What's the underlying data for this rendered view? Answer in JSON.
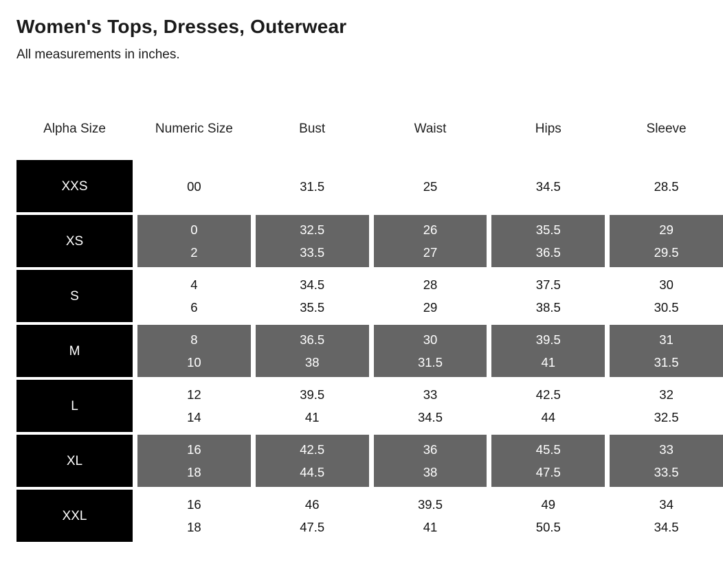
{
  "page": {
    "title": "Women's Tops, Dresses, Outerwear",
    "subtitle": "All measurements in inches."
  },
  "colors": {
    "alpha_cell_bg": "#000000",
    "alpha_cell_text": "#ffffff",
    "shaded_cell_bg": "#656565",
    "shaded_cell_text": "#ffffff",
    "plain_cell_text": "#111111",
    "page_bg": "#ffffff"
  },
  "table": {
    "columns": [
      "Alpha Size",
      "Numeric Size",
      "Bust",
      "Waist",
      "Hips",
      "Sleeve"
    ],
    "measurement_keys": [
      "numeric",
      "bust",
      "waist",
      "hips",
      "sleeve"
    ],
    "rows": [
      {
        "alpha": "XXS",
        "shaded": false,
        "numeric": [
          "00"
        ],
        "bust": [
          "31.5"
        ],
        "waist": [
          "25"
        ],
        "hips": [
          "34.5"
        ],
        "sleeve": [
          "28.5"
        ]
      },
      {
        "alpha": "XS",
        "shaded": true,
        "numeric": [
          "0",
          "2"
        ],
        "bust": [
          "32.5",
          "33.5"
        ],
        "waist": [
          "26",
          "27"
        ],
        "hips": [
          "35.5",
          "36.5"
        ],
        "sleeve": [
          "29",
          "29.5"
        ]
      },
      {
        "alpha": "S",
        "shaded": false,
        "numeric": [
          "4",
          "6"
        ],
        "bust": [
          "34.5",
          "35.5"
        ],
        "waist": [
          "28",
          "29"
        ],
        "hips": [
          "37.5",
          "38.5"
        ],
        "sleeve": [
          "30",
          "30.5"
        ]
      },
      {
        "alpha": "M",
        "shaded": true,
        "numeric": [
          "8",
          "10"
        ],
        "bust": [
          "36.5",
          "38"
        ],
        "waist": [
          "30",
          "31.5"
        ],
        "hips": [
          "39.5",
          "41"
        ],
        "sleeve": [
          "31",
          "31.5"
        ]
      },
      {
        "alpha": "L",
        "shaded": false,
        "numeric": [
          "12",
          "14"
        ],
        "bust": [
          "39.5",
          "41"
        ],
        "waist": [
          "33",
          "34.5"
        ],
        "hips": [
          "42.5",
          "44"
        ],
        "sleeve": [
          "32",
          "32.5"
        ]
      },
      {
        "alpha": "XL",
        "shaded": true,
        "numeric": [
          "16",
          "18"
        ],
        "bust": [
          "42.5",
          "44.5"
        ],
        "waist": [
          "36",
          "38"
        ],
        "hips": [
          "45.5",
          "47.5"
        ],
        "sleeve": [
          "33",
          "33.5"
        ]
      },
      {
        "alpha": "XXL",
        "shaded": false,
        "numeric": [
          "16",
          "18"
        ],
        "bust": [
          "46",
          "47.5"
        ],
        "waist": [
          "39.5",
          "41"
        ],
        "hips": [
          "49",
          "50.5"
        ],
        "sleeve": [
          "34",
          "34.5"
        ]
      }
    ]
  }
}
